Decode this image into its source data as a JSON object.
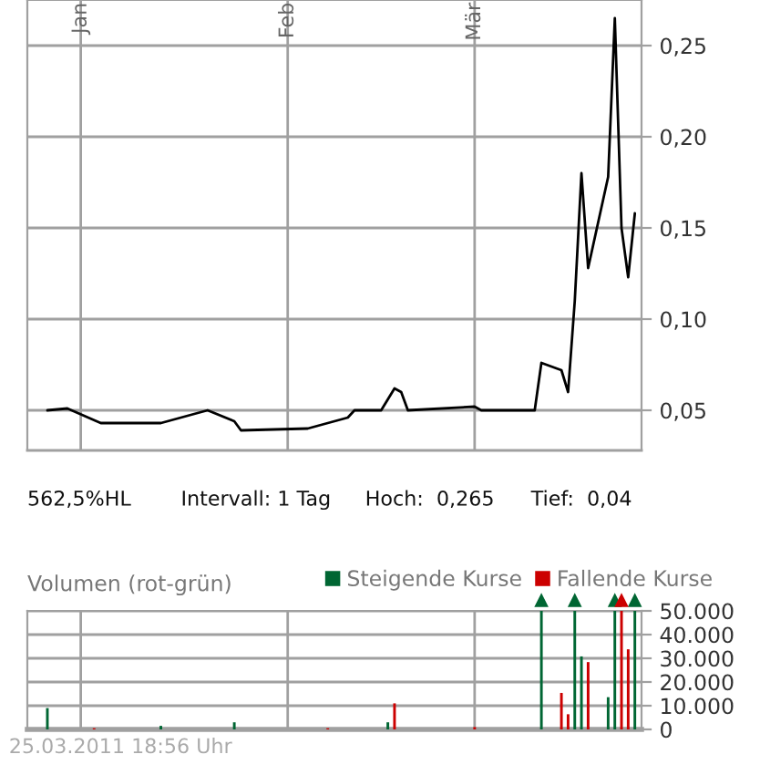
{
  "chart_data": [
    {
      "type": "line",
      "x": [
        "2010-12-27",
        "2010-12-30",
        "2011-01-04",
        "2011-01-13",
        "2011-01-20",
        "2011-01-24",
        "2011-01-25",
        "2011-02-04",
        "2011-02-10",
        "2011-02-11",
        "2011-02-15",
        "2011-02-17",
        "2011-02-18",
        "2011-02-19",
        "2011-03-01",
        "2011-03-02",
        "2011-03-10",
        "2011-03-11",
        "2011-03-14",
        "2011-03-15",
        "2011-03-16",
        "2011-03-17",
        "2011-03-18",
        "2011-03-21",
        "2011-03-22",
        "2011-03-23",
        "2011-03-24",
        "2011-03-25"
      ],
      "series": [
        {
          "color": "#000000",
          "values": [
            0.05,
            0.051,
            0.043,
            0.043,
            0.05,
            0.044,
            0.039,
            0.04,
            0.046,
            0.05,
            0.05,
            0.062,
            0.06,
            0.05,
            0.052,
            0.05,
            0.05,
            0.076,
            0.072,
            0.06,
            0.11,
            0.18,
            0.128,
            0.178,
            0.265,
            0.15,
            0.123,
            0.158
          ]
        }
      ],
      "xlim": [
        "2010-12-24",
        "2011-03-26"
      ],
      "xticks": [
        {
          "value": "2011-01-01",
          "label": "Jan"
        },
        {
          "value": "2011-02-01",
          "label": "Feb"
        },
        {
          "value": "2011-03-01",
          "label": "Mär"
        }
      ],
      "ylim": [
        0.028,
        0.275
      ],
      "yticks": [
        {
          "value": 0.05,
          "label": "0,05"
        },
        {
          "value": 0.1,
          "label": "0,10"
        },
        {
          "value": 0.15,
          "label": "0,15"
        },
        {
          "value": 0.2,
          "label": "0,20"
        },
        {
          "value": 0.25,
          "label": "0,25"
        }
      ],
      "grid": true,
      "legend": false,
      "annotations": [
        "562,5%HL",
        "Intervall: 1 Tag",
        "Hoch:  0,265",
        "Tief:  0,04"
      ]
    },
    {
      "type": "bar",
      "title": "Volumen (rot-grün)",
      "series": [
        {
          "name": "Steigende Kurse",
          "color": "#006633",
          "x": [
            "2010-12-27",
            "2011-01-13",
            "2011-01-24",
            "2011-02-16",
            "2011-03-11",
            "2011-03-16",
            "2011-03-17",
            "2011-03-21",
            "2011-03-22",
            "2011-03-25"
          ],
          "values": [
            9000,
            1500,
            3000,
            3000,
            50000,
            50000,
            30800,
            13600,
            50000,
            50000
          ]
        },
        {
          "name": "Fallende Kurse",
          "color": "#cc0000",
          "x": [
            "2011-01-03",
            "2011-02-07",
            "2011-02-17",
            "2011-03-01",
            "2011-03-14",
            "2011-03-15",
            "2011-03-18",
            "2011-03-23",
            "2011-03-24"
          ],
          "values": [
            500,
            500,
            11000,
            1000,
            15400,
            6400,
            28400,
            50000,
            33800
          ]
        }
      ],
      "xlim": [
        "2010-12-24",
        "2011-03-26"
      ],
      "xticks": [
        {
          "value": "2011-01-01",
          "label": null
        },
        {
          "value": "2011-02-01",
          "label": null
        },
        {
          "value": "2011-03-01",
          "label": null
        }
      ],
      "ylim": [
        0,
        50000
      ],
      "yticks": [
        0,
        {
          "value": 10000,
          "label": "10.000"
        },
        {
          "value": 20000,
          "label": "20.000"
        },
        {
          "value": 30000,
          "label": "30.000"
        },
        {
          "value": 40000,
          "label": "40.000"
        },
        {
          "value": 50000,
          "label": "50.000"
        }
      ],
      "tick_labels": "y",
      "grid": true,
      "legend": "top right",
      "annotations": [
        "25.03.2011 18:56 Uhr"
      ]
    }
  ]
}
